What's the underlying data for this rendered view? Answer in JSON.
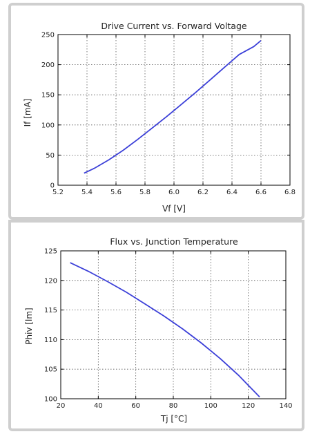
{
  "colors": {
    "line": "#3b3fd8",
    "grid": "#555555",
    "panel_border": "#cfcfcf"
  },
  "chart_data": [
    {
      "type": "line",
      "title": "Drive Current vs. Forward Voltage",
      "xlabel": "Vf [V]",
      "ylabel": "If [mA]",
      "xlim": [
        5.2,
        6.8
      ],
      "ylim": [
        0,
        250
      ],
      "xticks": [
        "5.2",
        "5.4",
        "5.6",
        "5.8",
        "6.0",
        "6.2",
        "6.4",
        "6.6",
        "6.8"
      ],
      "yticks": [
        "0",
        "50",
        "100",
        "150",
        "200",
        "250"
      ],
      "grid": true,
      "series": [
        {
          "x": [
            5.38,
            5.45,
            5.55,
            5.65,
            5.75,
            5.85,
            5.95,
            6.05,
            6.15,
            6.25,
            6.35,
            6.45,
            6.55,
            6.6
          ],
          "y": [
            20,
            28,
            42,
            58,
            76,
            95,
            114,
            134,
            154,
            175,
            196,
            217,
            230,
            240
          ]
        }
      ]
    },
    {
      "type": "line",
      "title": "Flux vs. Junction Temperature",
      "xlabel": "Tj [°C]",
      "ylabel": "Phiv [lm]",
      "xlim": [
        20,
        140
      ],
      "ylim": [
        100,
        125
      ],
      "xticks": [
        "20",
        "40",
        "60",
        "80",
        "100",
        "120",
        "140"
      ],
      "yticks": [
        "100",
        "105",
        "110",
        "115",
        "120",
        "125"
      ],
      "grid": true,
      "series": [
        {
          "x": [
            25,
            35,
            45,
            55,
            65,
            75,
            85,
            95,
            105,
            115,
            126
          ],
          "y": [
            123,
            121.5,
            119.8,
            118,
            116,
            114,
            111.8,
            109.4,
            106.8,
            103.9,
            100.3
          ]
        }
      ]
    }
  ]
}
